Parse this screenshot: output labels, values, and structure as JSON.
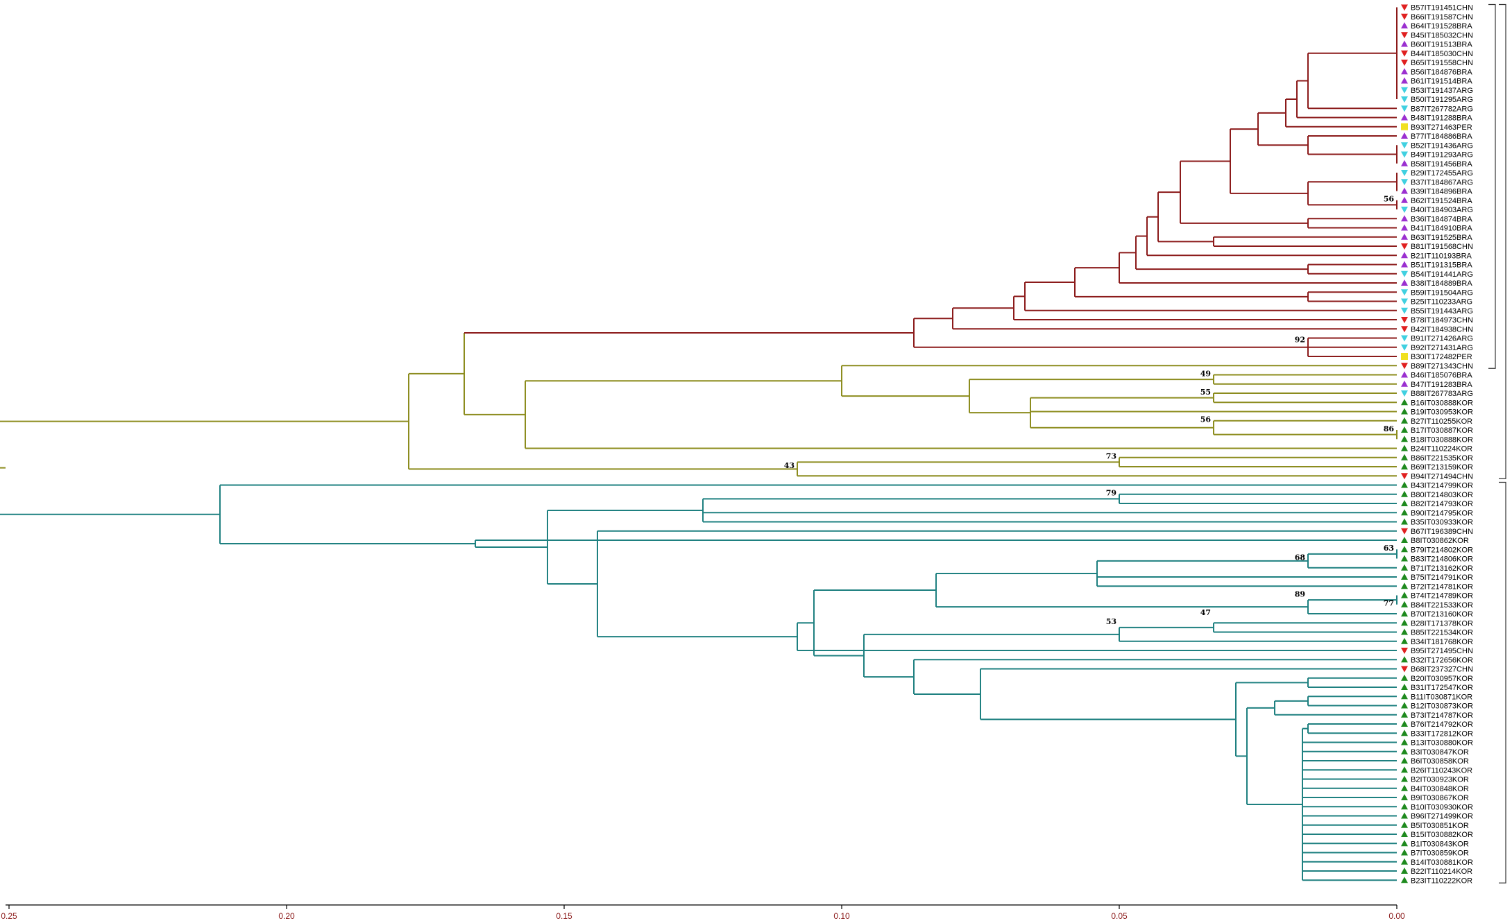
{
  "colors": {
    "clade_red": "#8b1a1a",
    "clade_olive": "#8c8c1e",
    "clade_teal": "#1e8080",
    "marker_CHN": "#e02020",
    "marker_BRA": "#9b30d0",
    "marker_ARG": "#40d0e0",
    "marker_PER": "#f0e020",
    "marker_KOR": "#1e8a1e"
  },
  "axis": {
    "ticks": [
      {
        "value": 0.25,
        "label": "0.25"
      },
      {
        "value": 0.2,
        "label": "0.20"
      },
      {
        "value": 0.15,
        "label": "0.15"
      },
      {
        "value": 0.1,
        "label": "0.10"
      },
      {
        "value": 0.05,
        "label": "0.05"
      },
      {
        "value": 0.0,
        "label": "0.00"
      }
    ],
    "range": [
      0.25,
      0.0
    ]
  },
  "leaves": [
    {
      "label": "B57IT191451CHN",
      "origin": "CHN"
    },
    {
      "label": "B66IT191587CHN",
      "origin": "CHN"
    },
    {
      "label": "B64IT191528BRA",
      "origin": "BRA"
    },
    {
      "label": "B45IT185032CHN",
      "origin": "CHN"
    },
    {
      "label": "B60IT191513BRA",
      "origin": "BRA"
    },
    {
      "label": "B44IT185030CHN",
      "origin": "CHN"
    },
    {
      "label": "B65IT191558CHN",
      "origin": "CHN"
    },
    {
      "label": "B56IT184876BRA",
      "origin": "BRA"
    },
    {
      "label": "B61IT191514BRA",
      "origin": "BRA"
    },
    {
      "label": "B53IT191437ARG",
      "origin": "ARG"
    },
    {
      "label": "B50IT191295ARG",
      "origin": "ARG"
    },
    {
      "label": "B87IT267782ARG",
      "origin": "ARG"
    },
    {
      "label": "B48IT191288BRA",
      "origin": "BRA"
    },
    {
      "label": "B93IT271463PER",
      "origin": "PER"
    },
    {
      "label": "B77IT184886BRA",
      "origin": "BRA"
    },
    {
      "label": "B52IT191436ARG",
      "origin": "ARG"
    },
    {
      "label": "B49IT191293ARG",
      "origin": "ARG"
    },
    {
      "label": "B58IT191456BRA",
      "origin": "BRA"
    },
    {
      "label": "B29IT172455ARG",
      "origin": "ARG"
    },
    {
      "label": "B37IT184867ARG",
      "origin": "ARG"
    },
    {
      "label": "B39IT184896BRA",
      "origin": "BRA"
    },
    {
      "label": "B62IT191524BRA",
      "origin": "BRA"
    },
    {
      "label": "B40IT184903ARG",
      "origin": "ARG"
    },
    {
      "label": "B36IT184874BRA",
      "origin": "BRA"
    },
    {
      "label": "B41IT184910BRA",
      "origin": "BRA"
    },
    {
      "label": "B63IT191525BRA",
      "origin": "BRA"
    },
    {
      "label": "B81IT191568CHN",
      "origin": "CHN"
    },
    {
      "label": "B21IT110193BRA",
      "origin": "BRA"
    },
    {
      "label": "B51IT191315BRA",
      "origin": "BRA"
    },
    {
      "label": "B54IT191441ARG",
      "origin": "ARG"
    },
    {
      "label": "B38IT184889BRA",
      "origin": "BRA"
    },
    {
      "label": "B59IT191504ARG",
      "origin": "ARG"
    },
    {
      "label": "B25IT110233ARG",
      "origin": "ARG"
    },
    {
      "label": "B55IT191443ARG",
      "origin": "ARG"
    },
    {
      "label": "B78IT184973CHN",
      "origin": "CHN"
    },
    {
      "label": "B42IT184938CHN",
      "origin": "CHN"
    },
    {
      "label": "B91IT271426ARG",
      "origin": "ARG"
    },
    {
      "label": "B92IT271431ARG",
      "origin": "ARG"
    },
    {
      "label": "B30IT172482PER",
      "origin": "PER"
    },
    {
      "label": "B89IT271343CHN",
      "origin": "CHN"
    },
    {
      "label": "B46IT185076BRA",
      "origin": "BRA"
    },
    {
      "label": "B47IT191283BRA",
      "origin": "BRA"
    },
    {
      "label": "B88IT267783ARG",
      "origin": "ARG"
    },
    {
      "label": "B16IT030888KOR",
      "origin": "KOR"
    },
    {
      "label": "B19IT030953KOR",
      "origin": "KOR"
    },
    {
      "label": "B27IT110255KOR",
      "origin": "KOR"
    },
    {
      "label": "B17IT030887KOR",
      "origin": "KOR"
    },
    {
      "label": "B18IT030888KOR",
      "origin": "KOR"
    },
    {
      "label": "B24IT110224KOR",
      "origin": "KOR"
    },
    {
      "label": "B86IT221535KOR",
      "origin": "KOR"
    },
    {
      "label": "B69IT213159KOR",
      "origin": "KOR"
    },
    {
      "label": "B94IT271494CHN",
      "origin": "CHN"
    },
    {
      "label": "B43IT214799KOR",
      "origin": "KOR"
    },
    {
      "label": "B80IT214803KOR",
      "origin": "KOR"
    },
    {
      "label": "B82IT214793KOR",
      "origin": "KOR"
    },
    {
      "label": "B90IT214795KOR",
      "origin": "KOR"
    },
    {
      "label": "B35IT030933KOR",
      "origin": "KOR"
    },
    {
      "label": "B67IT196389CHN",
      "origin": "CHN"
    },
    {
      "label": "B8IT030862KOR",
      "origin": "KOR"
    },
    {
      "label": "B79IT214802KOR",
      "origin": "KOR"
    },
    {
      "label": "B83IT214806KOR",
      "origin": "KOR"
    },
    {
      "label": "B71IT213162KOR",
      "origin": "KOR"
    },
    {
      "label": "B75IT214791KOR",
      "origin": "KOR"
    },
    {
      "label": "B72IT214781KOR",
      "origin": "KOR"
    },
    {
      "label": "B74IT214789KOR",
      "origin": "KOR"
    },
    {
      "label": "B84IT221533KOR",
      "origin": "KOR"
    },
    {
      "label": "B70IT213160KOR",
      "origin": "KOR"
    },
    {
      "label": "B28IT171378KOR",
      "origin": "KOR"
    },
    {
      "label": "B85IT221534KOR",
      "origin": "KOR"
    },
    {
      "label": "B34IT181768KOR",
      "origin": "KOR"
    },
    {
      "label": "B95IT271495CHN",
      "origin": "CHN"
    },
    {
      "label": "B32IT172656KOR",
      "origin": "KOR"
    },
    {
      "label": "B68IT237327CHN",
      "origin": "CHN"
    },
    {
      "label": "B20IT030957KOR",
      "origin": "KOR"
    },
    {
      "label": "B31IT172547KOR",
      "origin": "KOR"
    },
    {
      "label": "B11IT030871KOR",
      "origin": "KOR"
    },
    {
      "label": "B12IT030873KOR",
      "origin": "KOR"
    },
    {
      "label": "B73IT214787KOR",
      "origin": "KOR"
    },
    {
      "label": "B76IT214792KOR",
      "origin": "KOR"
    },
    {
      "label": "B33IT172812KOR",
      "origin": "KOR"
    },
    {
      "label": "B13IT030880KOR",
      "origin": "KOR"
    },
    {
      "label": "B3IT030847KOR",
      "origin": "KOR"
    },
    {
      "label": "B6IT030858KOR",
      "origin": "KOR"
    },
    {
      "label": "B26IT110243KOR",
      "origin": "KOR"
    },
    {
      "label": "B2IT030923KOR",
      "origin": "KOR"
    },
    {
      "label": "B4IT030848KOR",
      "origin": "KOR"
    },
    {
      "label": "B9IT030867KOR",
      "origin": "KOR"
    },
    {
      "label": "B10IT030930KOR",
      "origin": "KOR"
    },
    {
      "label": "B96IT271499KOR",
      "origin": "KOR"
    },
    {
      "label": "B5IT030851KOR",
      "origin": "KOR"
    },
    {
      "label": "B15IT030882KOR",
      "origin": "KOR"
    },
    {
      "label": "B1IT030843KOR",
      "origin": "KOR"
    },
    {
      "label": "B7IT030859KOR",
      "origin": "KOR"
    },
    {
      "label": "B14IT030881KOR",
      "origin": "KOR"
    },
    {
      "label": "B22IT110214KOR",
      "origin": "KOR"
    },
    {
      "label": "B23IT110222KOR",
      "origin": "KOR"
    }
  ],
  "tree": [
    [
      "n_root",
      0.268,
      null,
      "clade_olive"
    ],
    [
      "n_A",
      0.178,
      "n_root",
      "clade_olive"
    ],
    [
      "n_A1",
      0.168,
      "n_A",
      "clade_olive"
    ],
    [
      "n_R",
      0.107,
      "n_A1",
      "clade_red"
    ],
    [
      "n_R2",
      0.087,
      "n_R",
      "clade_red"
    ],
    [
      "n_R3",
      0.08,
      "n_R2",
      "clade_red"
    ],
    [
      "n_R4",
      0.069,
      "n_R3",
      "clade_red"
    ],
    [
      "n_R5",
      0.067,
      "n_R4",
      "clade_red"
    ],
    [
      "n_R6",
      0.058,
      "n_R5",
      "clade_red"
    ],
    [
      "n_R7",
      0.05,
      "n_R6",
      "clade_red"
    ],
    [
      "n_R8",
      0.047,
      "n_R7",
      "clade_red"
    ],
    [
      "n_R9",
      0.045,
      "n_R8",
      "clade_red"
    ],
    [
      "n_R10",
      0.043,
      "n_R9",
      "clade_red"
    ],
    [
      "n_R11",
      0.039,
      "n_R10",
      "clade_red"
    ],
    [
      "n_R12",
      0.03,
      "n_R11",
      "clade_red"
    ],
    [
      "n_R13",
      0.025,
      "n_R12",
      "clade_red"
    ],
    [
      "n_R14",
      0.02,
      "n_R13",
      "clade_red"
    ],
    [
      "n_R15",
      0.018,
      "n_R14",
      "clade_red"
    ],
    [
      "n_R16",
      0.016,
      "n_R15",
      "clade_red"
    ],
    [
      "n_a1",
      0.0,
      "n_R16",
      "clade_red"
    ],
    [
      "n_b2",
      0.016,
      "n_R13",
      "clade_red"
    ],
    [
      "n_b2a",
      0.0,
      "n_b2",
      "clade_red"
    ],
    [
      "n_c1",
      0.016,
      "n_R12",
      "clade_red"
    ],
    [
      "n_c1a",
      0.0,
      "n_c1",
      "clade_red"
    ],
    [
      "n_c1b",
      0.0,
      "n_c1",
      "clade_red"
    ],
    [
      "n_d1",
      0.016,
      "n_R11",
      "clade_red"
    ],
    [
      "n_d2",
      0.033,
      "n_R10",
      "clade_red"
    ],
    [
      "n_e1",
      0.016,
      "n_R8",
      "clade_red"
    ],
    [
      "n_f1",
      0.016,
      "n_R6",
      "clade_red"
    ],
    [
      "n_g1",
      0.016,
      "n_R2",
      "clade_red"
    ],
    [
      "n_Y",
      0.157,
      "n_A1",
      "clade_olive"
    ],
    [
      "n_Y1",
      0.1,
      "n_Y",
      "clade_olive"
    ],
    [
      "n_Y2",
      0.077,
      "n_Y1",
      "clade_olive"
    ],
    [
      "n_Y3",
      0.033,
      "n_Y2",
      "clade_olive"
    ],
    [
      "n_Y4",
      0.066,
      "n_Y2",
      "clade_olive"
    ],
    [
      "n_Y5",
      0.033,
      "n_Y4",
      "clade_olive"
    ],
    [
      "n_Y6",
      0.033,
      "n_Y4",
      "clade_olive"
    ],
    [
      "n_Y7",
      0.0,
      "n_Y6",
      "clade_olive"
    ],
    [
      "n_Y8",
      0.108,
      "n_A",
      "clade_olive"
    ],
    [
      "n_Y9",
      0.05,
      "n_Y8",
      "clade_olive"
    ],
    [
      "n_T",
      0.212,
      "n_root",
      "clade_teal"
    ],
    [
      "n_T1",
      0.166,
      "n_T",
      "clade_teal"
    ],
    [
      "n_T2",
      0.153,
      "n_T1",
      "clade_teal"
    ],
    [
      "n_T3",
      0.144,
      "n_T2",
      "clade_teal"
    ],
    [
      "n_T4",
      0.108,
      "n_T3",
      "clade_teal"
    ],
    [
      "n_T5",
      0.105,
      "n_T4",
      "clade_teal"
    ],
    [
      "n_T6",
      0.083,
      "n_T5",
      "clade_teal"
    ],
    [
      "n_T7",
      0.054,
      "n_T6",
      "clade_teal"
    ],
    [
      "n_T8",
      0.016,
      "n_T7",
      "clade_teal"
    ],
    [
      "n_T8a",
      0.0,
      "n_T8",
      "clade_teal"
    ],
    [
      "n_T9",
      0.016,
      "n_T6",
      "clade_teal"
    ],
    [
      "n_T9a",
      0.0,
      "n_T9",
      "clade_teal"
    ],
    [
      "n_T10",
      0.096,
      "n_T5",
      "clade_teal"
    ],
    [
      "n_T11",
      0.05,
      "n_T10",
      "clade_teal"
    ],
    [
      "n_T12",
      0.033,
      "n_T11",
      "clade_teal"
    ],
    [
      "n_T13",
      0.087,
      "n_T10",
      "clade_teal"
    ],
    [
      "n_T14",
      0.075,
      "n_T13",
      "clade_teal"
    ],
    [
      "n_T15",
      0.073,
      "n_T14",
      "clade_teal"
    ],
    [
      "n_T16",
      0.029,
      "n_T15",
      "clade_teal"
    ],
    [
      "n_T17",
      0.016,
      "n_T16",
      "clade_teal"
    ],
    [
      "n_T18",
      0.027,
      "n_T16",
      "clade_teal"
    ],
    [
      "n_T19",
      0.022,
      "n_T18",
      "clade_teal"
    ],
    [
      "n_T20",
      0.016,
      "n_T19",
      "clade_teal"
    ],
    [
      "n_T21",
      0.017,
      "n_T18",
      "clade_teal"
    ],
    [
      "n_T22",
      0.016,
      "n_T21",
      "clade_teal"
    ],
    [
      "n_T23",
      0.125,
      "n_T2",
      "clade_teal"
    ],
    [
      "n_T24",
      0.05,
      "n_T23",
      "clade_teal"
    ]
  ],
  "leaf_parent": [
    "n_a1",
    "n_a1",
    "n_a1",
    "n_a1",
    "n_a1",
    "n_a1",
    "n_a1",
    "n_a1",
    "n_a1",
    "n_a1",
    "n_a1",
    "n_R16",
    "n_R15",
    "n_R14",
    "n_b2",
    "n_b2a",
    "n_b2a",
    "n_b2a",
    "n_c1a",
    "n_c1a",
    "n_c1a",
    "n_c1b",
    "n_c1b",
    "n_d1",
    "n_d1",
    "n_d2",
    "n_d2",
    "n_R9",
    "n_e1",
    "n_e1",
    "n_R7",
    "n_f1",
    "n_f1",
    "n_R5",
    "n_R4",
    "n_R3",
    "n_g1",
    "n_g1",
    "n_g1",
    "n_Y1",
    "n_Y3",
    "n_Y3",
    "n_Y5",
    "n_Y5",
    "n_Y4",
    "n_Y6",
    "n_Y7",
    "n_Y7",
    "n_Y",
    "n_Y9",
    "n_Y9",
    "n_Y8",
    "n_T",
    "n_T24",
    "n_T24",
    "n_T23",
    "n_T23",
    "n_T3",
    "n_T1",
    "n_T8a",
    "n_T8a",
    "n_T8",
    "n_T7",
    "n_T7",
    "n_T9a",
    "n_T9a",
    "n_T9",
    "n_T12",
    "n_T12",
    "n_T11",
    "n_T4",
    "n_T13",
    "n_T14",
    "n_T17",
    "n_T17",
    "n_T20",
    "n_T20",
    "n_T19",
    "n_T22",
    "n_T22",
    "n_T21",
    "n_T21",
    "n_T21",
    "n_T21",
    "n_T21",
    "n_T21",
    "n_T21",
    "n_T21",
    "n_T21",
    "n_T21",
    "n_T21",
    "n_T21",
    "n_T21",
    "n_T21",
    "n_T21",
    "n_T21"
  ],
  "bootstrap": [
    {
      "label": "56",
      "value": 0.0,
      "leaf_index": 21.3
    },
    {
      "label": "92",
      "value": 0.016,
      "leaf_index": 36.6
    },
    {
      "label": "49",
      "value": 0.033,
      "leaf_index": 40.3
    },
    {
      "label": "55",
      "value": 0.033,
      "leaf_index": 42.3
    },
    {
      "label": "56",
      "value": 0.033,
      "leaf_index": 45.3
    },
    {
      "label": "86",
      "value": 0.0,
      "leaf_index": 46.3
    },
    {
      "label": "73",
      "value": 0.05,
      "leaf_index": 49.3
    },
    {
      "label": "43",
      "value": 0.108,
      "leaf_index": 50.3
    },
    {
      "label": "79",
      "value": 0.05,
      "leaf_index": 53.3
    },
    {
      "label": "63",
      "value": 0.0,
      "leaf_index": 59.3
    },
    {
      "label": "68",
      "value": 0.016,
      "leaf_index": 60.3
    },
    {
      "label": "89",
      "value": 0.016,
      "leaf_index": 64.3
    },
    {
      "label": "77",
      "value": 0.0,
      "leaf_index": 65.3
    },
    {
      "label": "53",
      "value": 0.05,
      "leaf_index": 67.3
    },
    {
      "label": "47",
      "value": 0.033,
      "leaf_index": 66.3
    }
  ],
  "brackets": [
    {
      "from": 0,
      "to": 39
    },
    {
      "from": 0,
      "to": 51
    },
    {
      "from": 52,
      "to": 95
    }
  ]
}
